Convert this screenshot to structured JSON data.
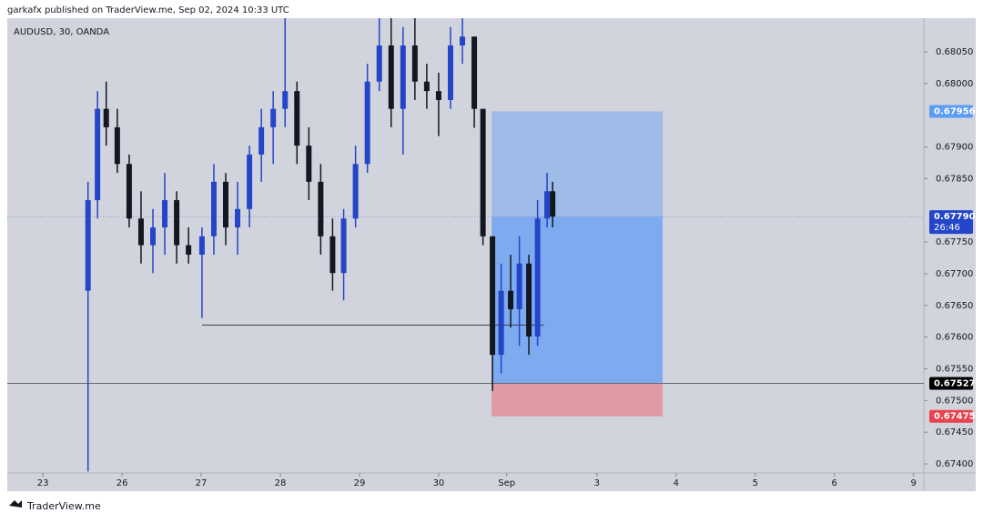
{
  "header": {
    "title": "garkafx published on TraderView.me, Sep 02, 2024 10:33 UTC"
  },
  "footer": {
    "brand": "TraderView.me"
  },
  "chart_data": {
    "type": "candlestick",
    "symbol": "AUDUSD, 30, OANDA",
    "up_color": "#2445c8",
    "down_color": "#131722",
    "xlim": [
      -0.45,
      11.13
    ],
    "ylim": [
      0.67357,
      0.68103
    ],
    "xticks": [
      {
        "value": 0,
        "label": "23"
      },
      {
        "value": 1,
        "label": "26"
      },
      {
        "value": 2,
        "label": "27"
      },
      {
        "value": 3,
        "label": "28"
      },
      {
        "value": 4,
        "label": "29"
      },
      {
        "value": 5,
        "label": "30"
      },
      {
        "value": 5.86,
        "label": "Sep"
      },
      {
        "value": 7,
        "label": "3"
      },
      {
        "value": 8,
        "label": "4"
      },
      {
        "value": 9,
        "label": "5"
      },
      {
        "value": 10,
        "label": "6"
      },
      {
        "value": 11,
        "label": "9"
      }
    ],
    "yticks": [
      {
        "value": 0.6805,
        "label": "0.68050"
      },
      {
        "value": 0.68,
        "label": "0.68000"
      },
      {
        "value": 0.679,
        "label": "0.67900"
      },
      {
        "value": 0.6785,
        "label": "0.67850"
      },
      {
        "value": 0.6775,
        "label": "0.67750"
      },
      {
        "value": 0.677,
        "label": "0.67700"
      },
      {
        "value": 0.6765,
        "label": "0.67650"
      },
      {
        "value": 0.676,
        "label": "0.67600"
      },
      {
        "value": 0.6755,
        "label": "0.67550"
      },
      {
        "value": 0.675,
        "label": "0.67500"
      },
      {
        "value": 0.6745,
        "label": "0.67450"
      },
      {
        "value": 0.674,
        "label": "0.67400"
      }
    ],
    "x": [
      0.57,
      0.69,
      0.8,
      0.94,
      1.09,
      1.24,
      1.39,
      1.54,
      1.69,
      1.84,
      2.01,
      2.16,
      2.31,
      2.46,
      2.61,
      2.76,
      2.91,
      3.06,
      3.21,
      3.36,
      3.51,
      3.66,
      3.8,
      3.95,
      4.1,
      4.25,
      4.4,
      4.55,
      4.7,
      4.85,
      5.0,
      5.15,
      5.3,
      5.45,
      5.56,
      5.68,
      5.79,
      5.91,
      6.02,
      6.14,
      6.25,
      6.37,
      6.44
    ],
    "open": [
      0.67673,
      0.67816,
      0.6796,
      0.67931,
      0.67873,
      0.67787,
      0.67745,
      0.67773,
      0.67816,
      0.67745,
      0.6773,
      0.67759,
      0.67845,
      0.67773,
      0.67802,
      0.67888,
      0.67931,
      0.6796,
      0.67988,
      0.67902,
      0.67845,
      0.67759,
      0.67701,
      0.67787,
      0.67873,
      0.68003,
      0.6806,
      0.6796,
      0.6806,
      0.68003,
      0.67988,
      0.67974,
      0.6806,
      0.68074,
      0.6796,
      0.67759,
      0.67572,
      0.67673,
      0.67644,
      0.67716,
      0.67601,
      0.67787,
      0.6783
    ],
    "high": [
      0.67845,
      0.67988,
      0.68003,
      0.6796,
      0.67888,
      0.6783,
      0.67802,
      0.67859,
      0.6783,
      0.67773,
      0.67773,
      0.67873,
      0.67859,
      0.67845,
      0.67902,
      0.6796,
      0.67988,
      0.68103,
      0.68003,
      0.67931,
      0.67873,
      0.67787,
      0.67802,
      0.67902,
      0.68031,
      0.68103,
      0.68103,
      0.68089,
      0.68103,
      0.68031,
      0.68017,
      0.68089,
      0.68103,
      0.68074,
      0.6796,
      0.67759,
      0.67716,
      0.6773,
      0.67759,
      0.6773,
      0.67816,
      0.67859,
      0.67845
    ],
    "low": [
      0.67388,
      0.67787,
      0.67902,
      0.67859,
      0.67773,
      0.67716,
      0.67701,
      0.6773,
      0.67716,
      0.67716,
      0.6763,
      0.6773,
      0.67745,
      0.6773,
      0.67773,
      0.67845,
      0.67873,
      0.67931,
      0.67873,
      0.67816,
      0.6773,
      0.67673,
      0.67658,
      0.67773,
      0.67859,
      0.67988,
      0.67931,
      0.67888,
      0.67974,
      0.6796,
      0.67917,
      0.6796,
      0.68031,
      0.6793,
      0.67745,
      0.67515,
      0.67543,
      0.67615,
      0.67586,
      0.67572,
      0.67586,
      0.67773,
      0.67773
    ],
    "close": [
      0.67816,
      0.6796,
      0.67931,
      0.67873,
      0.67787,
      0.67745,
      0.67773,
      0.67816,
      0.67745,
      0.6773,
      0.67759,
      0.67845,
      0.67773,
      0.67802,
      0.67888,
      0.67931,
      0.6796,
      0.67988,
      0.67902,
      0.67845,
      0.67759,
      0.67701,
      0.67787,
      0.67873,
      0.68003,
      0.6806,
      0.6796,
      0.6806,
      0.68003,
      0.67988,
      0.67974,
      0.6806,
      0.68074,
      0.6796,
      0.67759,
      0.67572,
      0.67673,
      0.67644,
      0.67716,
      0.67601,
      0.67787,
      0.6783,
      0.6779
    ],
    "position": {
      "x_start": 5.67,
      "x_end": 7.83,
      "target": 0.67956,
      "current": 0.6779,
      "entry": 0.67527,
      "stop": 0.67475
    },
    "hline": {
      "value": 0.67619,
      "x_start": 2.01,
      "x_end": 6.33
    },
    "levels": [
      {
        "value": 0.67956,
        "label": "0.67956",
        "color": "#5b9cf6"
      },
      {
        "value": 0.6779,
        "label": "0.67790",
        "color": "#2445c8",
        "countdown": "26:46"
      },
      {
        "value": 0.67527,
        "label": "0.67527",
        "color": "#000000"
      },
      {
        "value": 0.67475,
        "label": "0.67475",
        "color": "#e8434f"
      }
    ]
  }
}
